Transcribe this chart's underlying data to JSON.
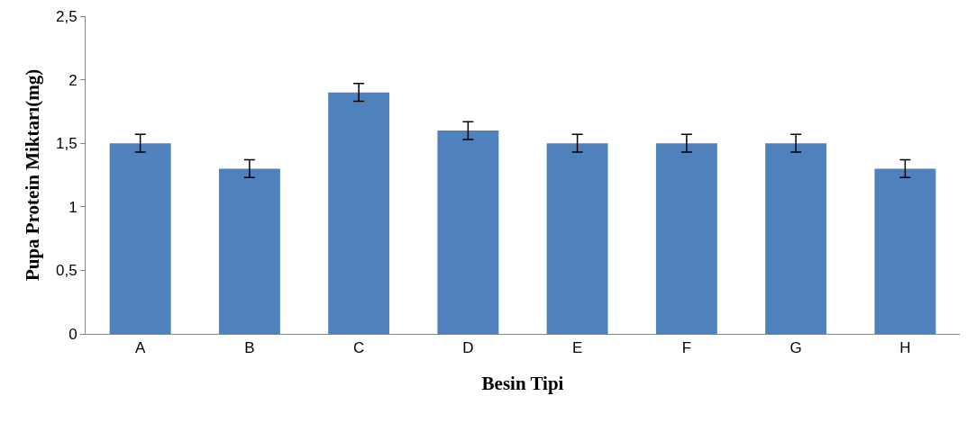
{
  "chart_data": {
    "type": "bar",
    "xlabel": "Besin Tipi",
    "ylabel": "Pupa Protein Miktarı(mg)",
    "categories": [
      "A",
      "B",
      "C",
      "D",
      "E",
      "F",
      "G",
      "H"
    ],
    "values": [
      1.5,
      1.3,
      1.9,
      1.6,
      1.5,
      1.5,
      1.5,
      1.3
    ],
    "errors": [
      0.07,
      0.07,
      0.07,
      0.07,
      0.07,
      0.07,
      0.07,
      0.07
    ],
    "color": "#4f81bd",
    "ylim": [
      0,
      2.5
    ],
    "yticks": [
      0,
      {
        "value": 0.5,
        "label": "0,5"
      },
      1,
      {
        "value": 1.5,
        "label": "1,5"
      },
      2,
      {
        "value": 2.5,
        "label": "2,5"
      }
    ]
  }
}
